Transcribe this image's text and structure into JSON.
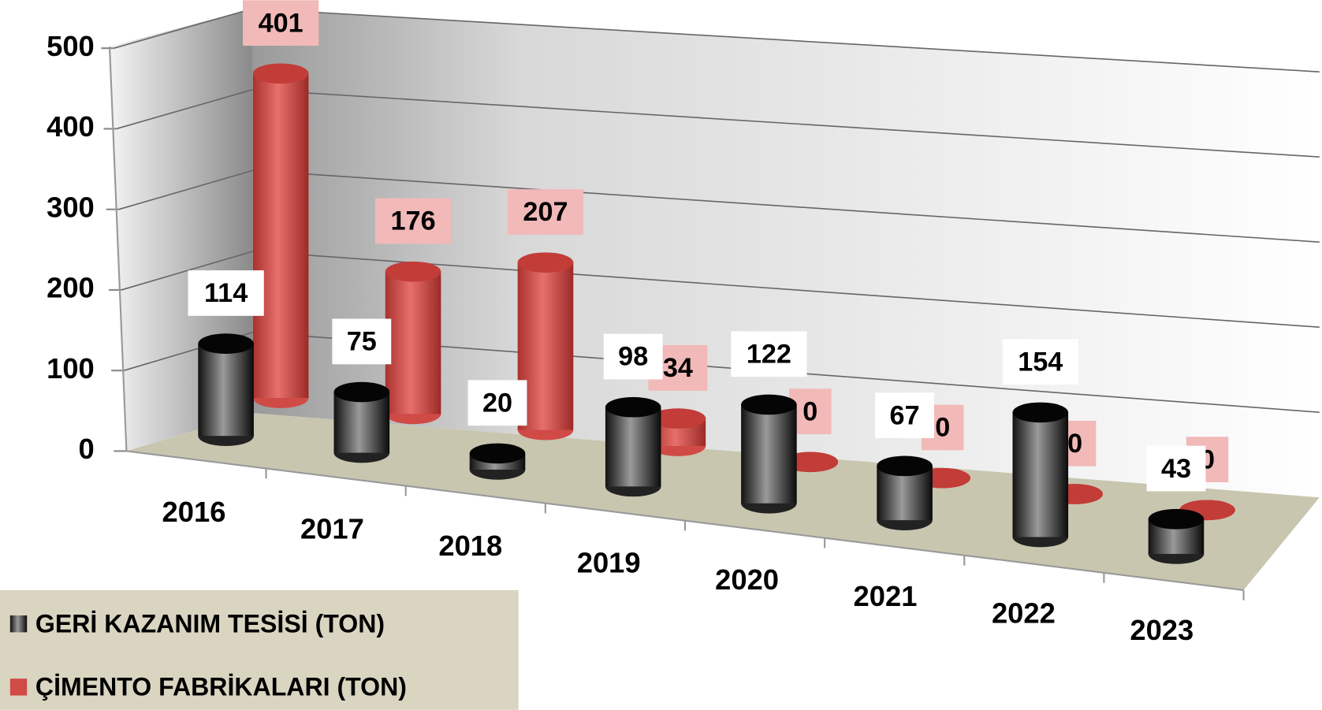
{
  "chart_data": {
    "type": "bar3d",
    "categories": [
      "2016",
      "2017",
      "2018",
      "2019",
      "2020",
      "2021",
      "2022",
      "2023"
    ],
    "series": [
      {
        "name": "GERİ KAZANIM TESİSİ (TON)",
        "color": "#222222",
        "values": [
          114,
          75,
          20,
          98,
          122,
          67,
          154,
          43
        ]
      },
      {
        "name": "ÇİMENTO FABRİKALARI (TON)",
        "color": "#d04a46",
        "values": [
          401,
          176,
          207,
          34,
          0,
          0,
          0,
          0
        ]
      }
    ],
    "ylim": [
      0,
      500
    ],
    "yticks": [
      0,
      100,
      200,
      300,
      400,
      500
    ],
    "grid": true,
    "legend": "bottom-left"
  }
}
